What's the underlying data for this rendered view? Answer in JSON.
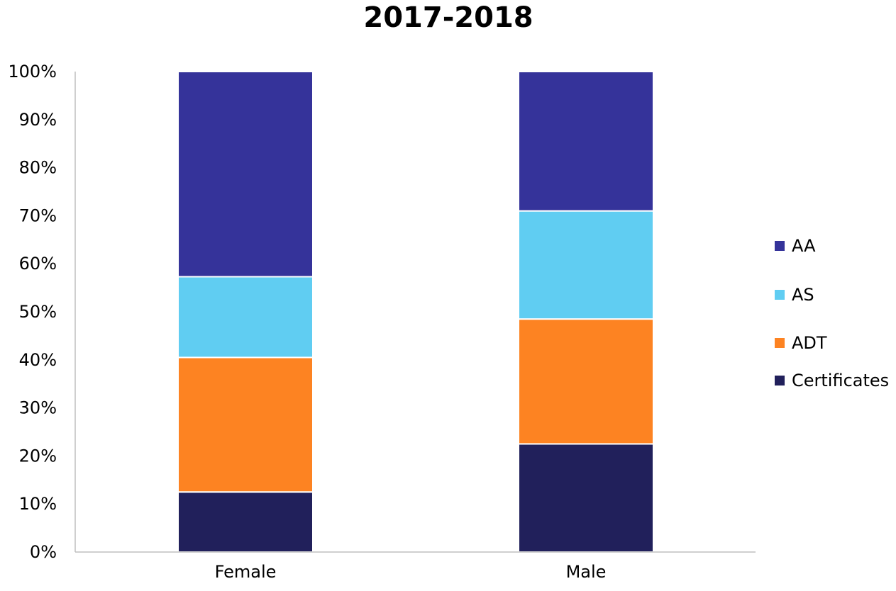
{
  "chart_data": {
    "type": "bar",
    "stacked": true,
    "percent": true,
    "title": "2017-2018",
    "xlabel": "",
    "ylabel": "",
    "categories": [
      "Female",
      "Male"
    ],
    "series": [
      {
        "name": "Certificates",
        "color": "#21205b",
        "values": [
          12.5,
          22.5
        ]
      },
      {
        "name": "ADT",
        "color": "#fd8322",
        "values": [
          28.0,
          26.0
        ]
      },
      {
        "name": "AS",
        "color": "#60cdf2",
        "values": [
          16.8,
          22.5
        ]
      },
      {
        "name": "AA",
        "color": "#35339a",
        "values": [
          42.7,
          29.0
        ]
      }
    ],
    "ylim": [
      0,
      100
    ],
    "yticks": [
      "0%",
      "10%",
      "20%",
      "30%",
      "40%",
      "50%",
      "60%",
      "70%",
      "80%",
      "90%",
      "100%"
    ],
    "grid": false,
    "legend": "right",
    "legend_order": [
      "AA",
      "AS",
      "ADT",
      "Certificates"
    ]
  }
}
